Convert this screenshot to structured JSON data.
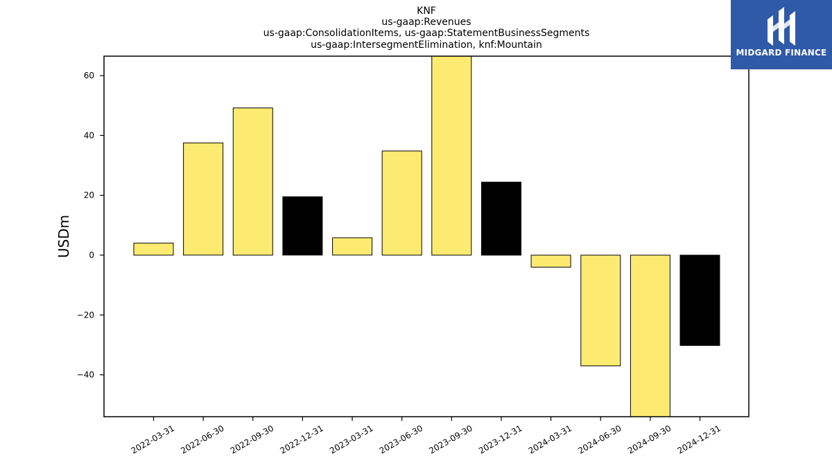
{
  "chart_data": {
    "type": "bar",
    "title_lines": [
      "KNF",
      "us-gaap:Revenues",
      "us-gaap:ConsolidationItems, us-gaap:StatementBusinessSegments",
      "us-gaap:IntersegmentElimination, knf:Mountain"
    ],
    "ylabel": "USDm",
    "categories": [
      "2022-03-31",
      "2022-06-30",
      "2022-09-30",
      "2022-12-31",
      "2023-03-31",
      "2023-06-30",
      "2023-09-30",
      "2023-12-31",
      "2024-03-31",
      "2024-06-30",
      "2024-09-30",
      "2024-12-31"
    ],
    "values": [
      4.0,
      37.5,
      49.2,
      19.5,
      5.8,
      34.8,
      66.5,
      24.4,
      -4.0,
      -37.0,
      -54.0,
      -30.2
    ],
    "bar_colors": [
      "#fdeb71",
      "#fdeb71",
      "#fdeb71",
      "#000000",
      "#fdeb71",
      "#fdeb71",
      "#fdeb71",
      "#000000",
      "#fdeb71",
      "#fdeb71",
      "#fdeb71",
      "#000000"
    ],
    "yticks": [
      -40,
      -20,
      0,
      20,
      40,
      60
    ],
    "ytick_labels": [
      "−40",
      "−20",
      "0",
      "20",
      "40",
      "60"
    ],
    "ylim": [
      -54,
      66.5
    ],
    "grid": false
  },
  "logo": {
    "text": "MIDGARD FINANCE",
    "background": "#2f5aa8"
  }
}
